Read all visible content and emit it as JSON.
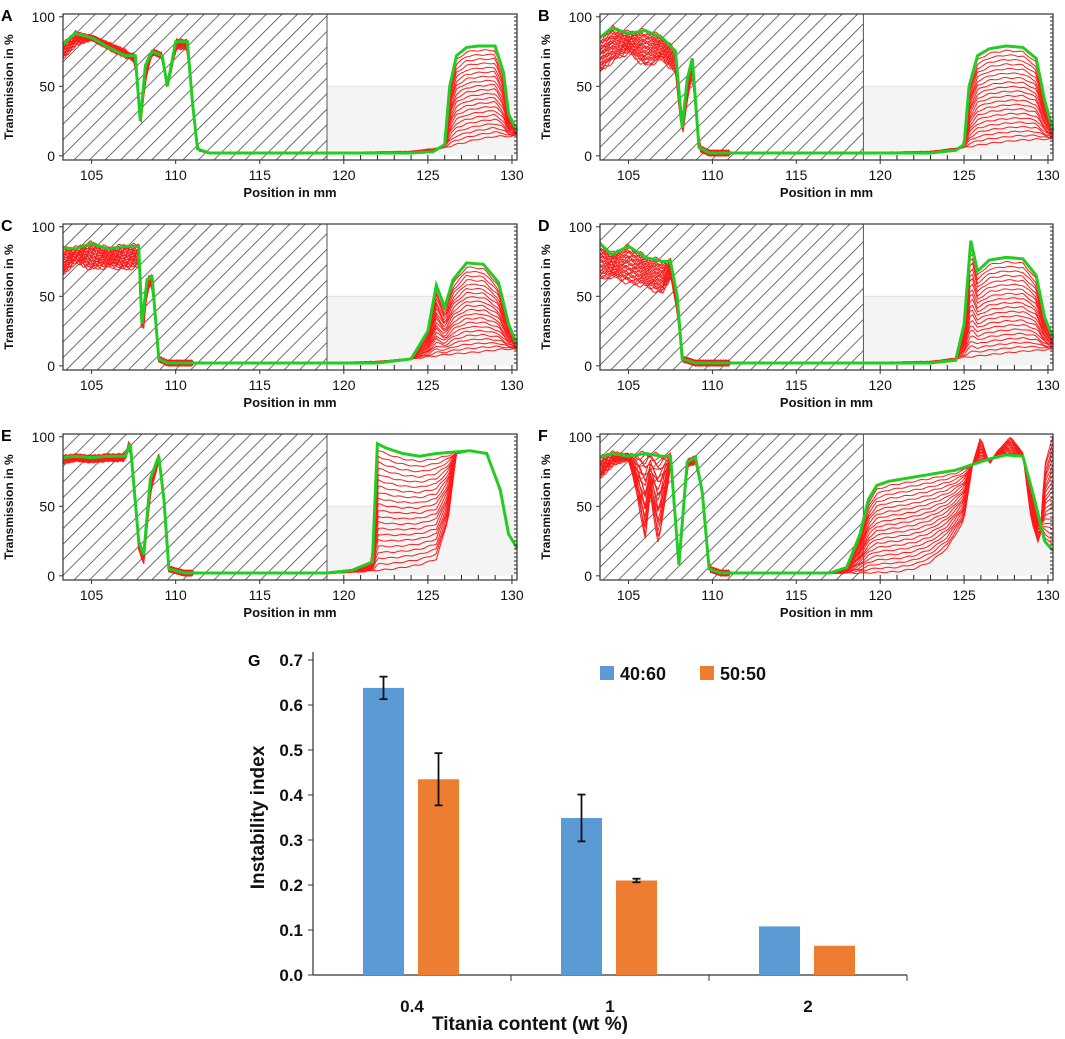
{
  "chart_data": [
    {
      "panel": "A",
      "type": "line",
      "xlabel": "Position in mm",
      "ylabel": "Transmission in %",
      "xlim": [
        103.3,
        130.3
      ],
      "ylim": [
        -3,
        102
      ],
      "xticks": [
        "105",
        "110",
        "115",
        "120",
        "125",
        "130"
      ],
      "yticks": [
        "0",
        "50",
        "100"
      ],
      "hatch_range": [
        103.3,
        119
      ],
      "num_profiles": 22,
      "first_profile": [
        [
          103.3,
          70
        ],
        [
          104,
          80
        ],
        [
          105,
          85
        ],
        [
          106,
          80
        ],
        [
          107,
          75
        ],
        [
          107.6,
          68
        ],
        [
          107.9,
          20
        ],
        [
          108.2,
          55
        ],
        [
          108.6,
          75
        ],
        [
          109.2,
          72
        ],
        [
          109.5,
          48
        ],
        [
          110,
          78
        ],
        [
          110.7,
          78
        ],
        [
          111,
          35
        ],
        [
          111.3,
          4
        ],
        [
          112,
          2
        ],
        [
          119,
          2
        ],
        [
          124,
          3
        ],
        [
          126,
          6
        ],
        [
          127.3,
          10
        ],
        [
          128,
          12
        ],
        [
          129,
          14
        ],
        [
          130,
          14
        ],
        [
          130.3,
          15
        ]
      ],
      "final_profile": [
        [
          103.3,
          80
        ],
        [
          104,
          88
        ],
        [
          105,
          85
        ],
        [
          106,
          78
        ],
        [
          107,
          72
        ],
        [
          107.6,
          72
        ],
        [
          107.9,
          25
        ],
        [
          108.2,
          65
        ],
        [
          108.6,
          75
        ],
        [
          109.2,
          72
        ],
        [
          109.5,
          50
        ],
        [
          110,
          82
        ],
        [
          110.7,
          82
        ],
        [
          111,
          38
        ],
        [
          111.3,
          5
        ],
        [
          112,
          2
        ],
        [
          119,
          2
        ],
        [
          124,
          2
        ],
        [
          125.3,
          3
        ],
        [
          126,
          8
        ],
        [
          126.3,
          50
        ],
        [
          126.7,
          72
        ],
        [
          127.3,
          78
        ],
        [
          128,
          79
        ],
        [
          129,
          79
        ],
        [
          129.5,
          60
        ],
        [
          129.8,
          30
        ],
        [
          130.3,
          18
        ]
      ]
    },
    {
      "panel": "B",
      "type": "line",
      "xlabel": "Position in mm",
      "ylabel": "Transmission in %",
      "xlim": [
        103.3,
        130.3
      ],
      "ylim": [
        -3,
        102
      ],
      "xticks": [
        "105",
        "110",
        "115",
        "120",
        "125",
        "130"
      ],
      "yticks": [
        "0",
        "50",
        "100"
      ],
      "hatch_range": [
        103.3,
        119
      ],
      "num_profiles": 22,
      "first_profile": [
        [
          103.3,
          60
        ],
        [
          104,
          68
        ],
        [
          105,
          75
        ],
        [
          106,
          65
        ],
        [
          107,
          70
        ],
        [
          107.8,
          60
        ],
        [
          108.2,
          15
        ],
        [
          108.5,
          40
        ],
        [
          108.8,
          60
        ],
        [
          109.2,
          5
        ],
        [
          109.8,
          2
        ],
        [
          119,
          2
        ],
        [
          123,
          3
        ],
        [
          125,
          6
        ],
        [
          126.5,
          9
        ],
        [
          128,
          11
        ],
        [
          129.5,
          12
        ],
        [
          130.3,
          12
        ]
      ],
      "final_profile": [
        [
          103.3,
          85
        ],
        [
          104,
          92
        ],
        [
          105,
          88
        ],
        [
          106,
          90
        ],
        [
          107,
          85
        ],
        [
          107.8,
          75
        ],
        [
          108.2,
          20
        ],
        [
          108.5,
          55
        ],
        [
          108.8,
          70
        ],
        [
          109.2,
          6
        ],
        [
          109.8,
          2
        ],
        [
          119,
          2
        ],
        [
          123,
          2
        ],
        [
          124.5,
          4
        ],
        [
          125,
          8
        ],
        [
          125.3,
          50
        ],
        [
          125.8,
          72
        ],
        [
          126.5,
          77
        ],
        [
          127.5,
          79
        ],
        [
          128.5,
          78
        ],
        [
          129.3,
          70
        ],
        [
          129.8,
          40
        ],
        [
          130.3,
          18
        ]
      ]
    },
    {
      "panel": "C",
      "type": "line",
      "xlabel": "Position in mm",
      "ylabel": "Transmission in %",
      "xlim": [
        103.3,
        130.3
      ],
      "ylim": [
        -3,
        102
      ],
      "xticks": [
        "105",
        "110",
        "115",
        "120",
        "125",
        "130"
      ],
      "yticks": [
        "0",
        "50",
        "100"
      ],
      "hatch_range": [
        103.3,
        119
      ],
      "num_profiles": 22,
      "first_profile": [
        [
          103.3,
          65
        ],
        [
          104,
          75
        ],
        [
          105,
          70
        ],
        [
          106,
          72
        ],
        [
          107,
          70
        ],
        [
          107.8,
          72
        ],
        [
          108,
          15
        ],
        [
          108.3,
          55
        ],
        [
          108.6,
          60
        ],
        [
          109,
          5
        ],
        [
          109.5,
          2
        ],
        [
          119,
          2
        ],
        [
          122,
          3
        ],
        [
          124,
          5
        ],
        [
          126,
          8
        ],
        [
          128,
          10
        ],
        [
          129.5,
          12
        ],
        [
          130.3,
          12
        ]
      ],
      "final_profile": [
        [
          103.3,
          85
        ],
        [
          104,
          84
        ],
        [
          105,
          88
        ],
        [
          106,
          84
        ],
        [
          107,
          86
        ],
        [
          107.8,
          86
        ],
        [
          108,
          30
        ],
        [
          108.3,
          62
        ],
        [
          108.6,
          64
        ],
        [
          109,
          5
        ],
        [
          109.5,
          2
        ],
        [
          119,
          2
        ],
        [
          122,
          2
        ],
        [
          124,
          5
        ],
        [
          125,
          25
        ],
        [
          125.5,
          58
        ],
        [
          126,
          42
        ],
        [
          126.5,
          62
        ],
        [
          127.3,
          74
        ],
        [
          128.3,
          73
        ],
        [
          129.2,
          60
        ],
        [
          129.8,
          30
        ],
        [
          130.3,
          15
        ]
      ]
    },
    {
      "panel": "D",
      "type": "line",
      "xlabel": "Position in mm",
      "ylabel": "Transmission in %",
      "xlim": [
        103.3,
        130.3
      ],
      "ylim": [
        -3,
        102
      ],
      "xticks": [
        "105",
        "110",
        "115",
        "120",
        "125",
        "130"
      ],
      "yticks": [
        "0",
        "50",
        "100"
      ],
      "hatch_range": [
        103.3,
        119
      ],
      "num_profiles": 22,
      "first_profile": [
        [
          103.3,
          62
        ],
        [
          104,
          65
        ],
        [
          105,
          60
        ],
        [
          106,
          58
        ],
        [
          107,
          52
        ],
        [
          107.5,
          65
        ],
        [
          107.9,
          40
        ],
        [
          108.2,
          5
        ],
        [
          109,
          2
        ],
        [
          119,
          2
        ],
        [
          123,
          3
        ],
        [
          125,
          6
        ],
        [
          126.5,
          8
        ],
        [
          128,
          10
        ],
        [
          130.3,
          12
        ]
      ],
      "final_profile": [
        [
          103.3,
          88
        ],
        [
          104,
          80
        ],
        [
          105,
          86
        ],
        [
          106,
          78
        ],
        [
          107,
          75
        ],
        [
          107.5,
          75
        ],
        [
          107.9,
          50
        ],
        [
          108.2,
          5
        ],
        [
          109,
          2
        ],
        [
          119,
          2
        ],
        [
          123,
          2
        ],
        [
          124.5,
          4
        ],
        [
          125,
          30
        ],
        [
          125.4,
          90
        ],
        [
          125.8,
          68
        ],
        [
          126.5,
          76
        ],
        [
          127.5,
          78
        ],
        [
          128.5,
          77
        ],
        [
          129.3,
          65
        ],
        [
          129.8,
          35
        ],
        [
          130.3,
          20
        ]
      ]
    },
    {
      "panel": "E",
      "type": "line",
      "xlabel": "Position in mm",
      "ylabel": "Transmission in %",
      "xlim": [
        103.3,
        130.3
      ],
      "ylim": [
        -3,
        102
      ],
      "xticks": [
        "105",
        "110",
        "115",
        "120",
        "125",
        "130"
      ],
      "yticks": [
        "0",
        "50",
        "100"
      ],
      "hatch_range": [
        103.3,
        119
      ],
      "num_profiles": 22,
      "first_profile": [
        [
          103.3,
          82
        ],
        [
          104,
          84
        ],
        [
          105,
          83
        ],
        [
          106,
          84
        ],
        [
          107,
          84
        ],
        [
          107.3,
          100
        ],
        [
          107.8,
          20
        ],
        [
          108.1,
          10
        ],
        [
          108.5,
          60
        ],
        [
          109,
          84
        ],
        [
          109.3,
          55
        ],
        [
          109.6,
          5
        ],
        [
          110.5,
          2
        ],
        [
          119,
          2
        ],
        [
          121,
          3
        ],
        [
          123,
          5
        ],
        [
          124.5,
          8
        ],
        [
          125.5,
          12
        ],
        [
          126.2,
          40
        ],
        [
          126.7,
          88
        ],
        [
          127.5,
          90
        ],
        [
          128.5,
          88
        ],
        [
          129.3,
          60
        ],
        [
          129.8,
          30
        ],
        [
          130.3,
          20
        ]
      ],
      "final_profile": [
        [
          103.3,
          85
        ],
        [
          104,
          86
        ],
        [
          105,
          85
        ],
        [
          106,
          86
        ],
        [
          107,
          86
        ],
        [
          107.3,
          95
        ],
        [
          107.8,
          25
        ],
        [
          108.1,
          15
        ],
        [
          108.5,
          70
        ],
        [
          109,
          86
        ],
        [
          109.3,
          55
        ],
        [
          109.6,
          5
        ],
        [
          110.5,
          2
        ],
        [
          119,
          2
        ],
        [
          120.5,
          4
        ],
        [
          121.7,
          10
        ],
        [
          122,
          95
        ],
        [
          122.5,
          92
        ],
        [
          123.5,
          88
        ],
        [
          124.5,
          86
        ],
        [
          125.5,
          88
        ],
        [
          126.5,
          89
        ],
        [
          127.5,
          90
        ],
        [
          128.5,
          88
        ],
        [
          129.3,
          62
        ],
        [
          129.8,
          30
        ],
        [
          130.3,
          20
        ]
      ]
    },
    {
      "panel": "F",
      "type": "line",
      "xlabel": "Position in mm",
      "ylabel": "Transmission in %",
      "xlim": [
        103.3,
        130.3
      ],
      "ylim": [
        -3,
        102
      ],
      "xticks": [
        "105",
        "110",
        "115",
        "120",
        "125",
        "130"
      ],
      "yticks": [
        "0",
        "50",
        "100"
      ],
      "hatch_range": [
        103.3,
        119
      ],
      "num_profiles": 22,
      "first_profile": [
        [
          103.3,
          70
        ],
        [
          104,
          80
        ],
        [
          105,
          85
        ],
        [
          105.5,
          60
        ],
        [
          106,
          25
        ],
        [
          106.3,
          60
        ],
        [
          106.8,
          20
        ],
        [
          107,
          40
        ],
        [
          107.5,
          80
        ],
        [
          108,
          5
        ],
        [
          108.5,
          80
        ],
        [
          109,
          82
        ],
        [
          109.4,
          60
        ],
        [
          109.8,
          5
        ],
        [
          110.5,
          2
        ],
        [
          119,
          2
        ],
        [
          121,
          3
        ],
        [
          122,
          5
        ],
        [
          123,
          10
        ],
        [
          124,
          20
        ],
        [
          125,
          40
        ],
        [
          125.5,
          80
        ],
        [
          126,
          100
        ],
        [
          126.5,
          80
        ],
        [
          127,
          90
        ],
        [
          127.8,
          100
        ],
        [
          128.5,
          88
        ],
        [
          129,
          40
        ],
        [
          129.5,
          20
        ],
        [
          129.8,
          80
        ],
        [
          130.3,
          100
        ]
      ],
      "final_profile": [
        [
          103.3,
          85
        ],
        [
          104,
          88
        ],
        [
          105,
          86
        ],
        [
          106,
          88
        ],
        [
          107,
          86
        ],
        [
          107.5,
          86
        ],
        [
          108,
          8
        ],
        [
          108.5,
          82
        ],
        [
          109,
          85
        ],
        [
          109.4,
          60
        ],
        [
          109.8,
          5
        ],
        [
          110.5,
          2
        ],
        [
          117,
          2
        ],
        [
          118,
          6
        ],
        [
          118.8,
          30
        ],
        [
          119.3,
          55
        ],
        [
          119.8,
          65
        ],
        [
          120.5,
          68
        ],
        [
          121.5,
          70
        ],
        [
          122.5,
          72
        ],
        [
          123.5,
          74
        ],
        [
          124.5,
          76
        ],
        [
          125.5,
          80
        ],
        [
          126.5,
          84
        ],
        [
          127.5,
          87
        ],
        [
          128.5,
          86
        ],
        [
          129.2,
          55
        ],
        [
          129.8,
          25
        ],
        [
          130.3,
          18
        ]
      ]
    },
    {
      "panel": "G",
      "type": "bar",
      "categories": [
        "0.4",
        "1",
        "2"
      ],
      "series": [
        {
          "name": "40:60",
          "values": [
            0.638,
            0.349,
            0.108
          ],
          "errors": [
            0.025,
            0.052,
            0.0
          ],
          "color": "#5B9BD5"
        },
        {
          "name": "50:50",
          "values": [
            0.435,
            0.21,
            0.065
          ],
          "errors": [
            0.058,
            0.004,
            0.0
          ],
          "color": "#ED7D31"
        }
      ],
      "xlabel": "Titania content (wt %)",
      "ylabel": "Instability index",
      "ylim": [
        0,
        0.7
      ],
      "yticks": [
        "0.0",
        "0.1",
        "0.2",
        "0.3",
        "0.4",
        "0.5",
        "0.6",
        "0.7"
      ],
      "legend_position": "top-right"
    }
  ]
}
